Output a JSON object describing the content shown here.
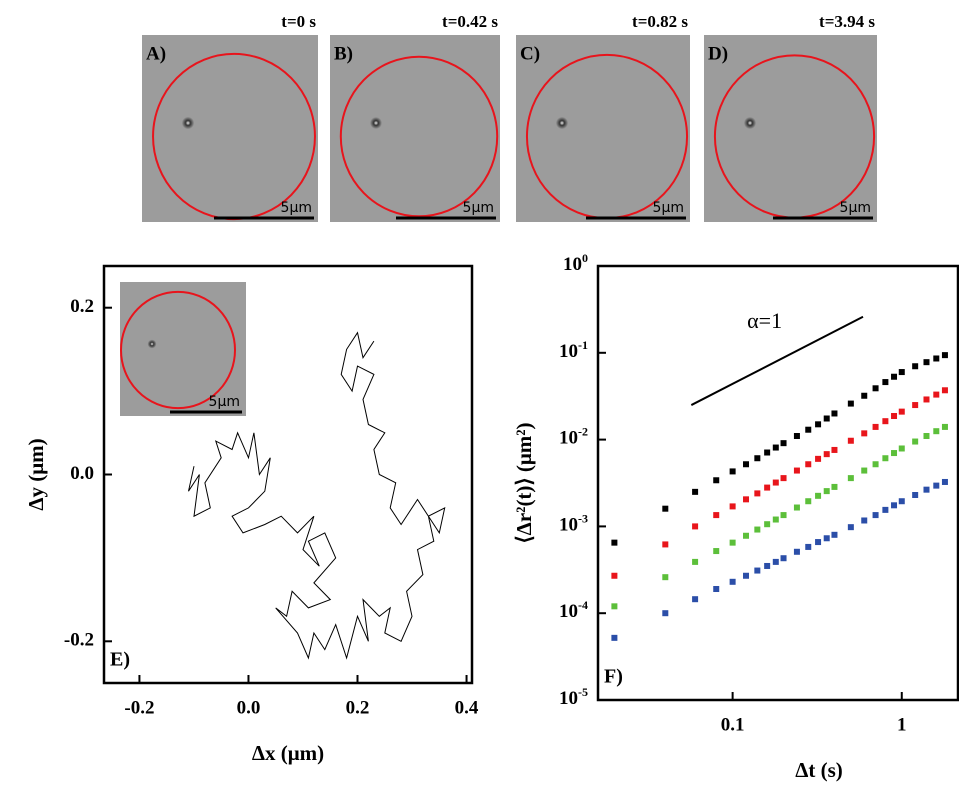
{
  "panels": [
    {
      "label": "A)",
      "time": "t=0 s",
      "scale": "5μm"
    },
    {
      "label": "B)",
      "time": "t=0.42 s",
      "scale": "5μm"
    },
    {
      "label": "C)",
      "time": "t=0.82 s",
      "scale": "5μm"
    },
    {
      "label": "D)",
      "time": "t=3.94 s",
      "scale": "5μm"
    }
  ],
  "inset": {
    "scale": "5μm"
  },
  "chart_data": [
    {
      "type": "line",
      "panel_label": "E)",
      "x_label": "Δx (μm)",
      "y_label": "Δy (μm)",
      "xlim": [
        -0.265,
        0.41
      ],
      "ylim": [
        -0.25,
        0.25
      ],
      "xticks": [
        -0.2,
        {
          "value": 0,
          "label": "0.0"
        },
        0.2,
        0.4
      ],
      "yticks": [
        -0.2,
        {
          "value": 0,
          "label": "0.0"
        },
        0.2
      ],
      "x": [
        -0.1,
        -0.11,
        -0.09,
        -0.1,
        -0.07,
        -0.08,
        -0.05,
        -0.06,
        -0.03,
        -0.02,
        0.0,
        0.01,
        0.02,
        0.04,
        0.03,
        0.0,
        -0.03,
        -0.01,
        0.03,
        0.06,
        0.09,
        0.12,
        0.1,
        0.13,
        0.11,
        0.14,
        0.16,
        0.12,
        0.15,
        0.11,
        0.08,
        0.07,
        0.05,
        0.09,
        0.11,
        0.12,
        0.14,
        0.16,
        0.18,
        0.2,
        0.22,
        0.21,
        0.24,
        0.26,
        0.25,
        0.28,
        0.3,
        0.29,
        0.32,
        0.31,
        0.34,
        0.33,
        0.36,
        0.35,
        0.31,
        0.28,
        0.26,
        0.27,
        0.24,
        0.23,
        0.25,
        0.22,
        0.21,
        0.23,
        0.2,
        0.19,
        0.17,
        0.18,
        0.2,
        0.21,
        0.23
      ],
      "series": [
        {
          "color": "#000000",
          "values": [
            0.01,
            -0.02,
            0.0,
            -0.05,
            -0.04,
            -0.01,
            0.02,
            0.04,
            0.03,
            0.05,
            0.02,
            0.05,
            0.0,
            0.02,
            -0.02,
            -0.04,
            -0.05,
            -0.07,
            -0.06,
            -0.05,
            -0.07,
            -0.05,
            -0.09,
            -0.11,
            -0.08,
            -0.07,
            -0.1,
            -0.13,
            -0.15,
            -0.16,
            -0.14,
            -0.17,
            -0.16,
            -0.19,
            -0.22,
            -0.19,
            -0.21,
            -0.18,
            -0.22,
            -0.17,
            -0.2,
            -0.15,
            -0.17,
            -0.16,
            -0.19,
            -0.2,
            -0.17,
            -0.14,
            -0.12,
            -0.09,
            -0.08,
            -0.05,
            -0.04,
            -0.07,
            -0.03,
            -0.06,
            -0.04,
            -0.01,
            0.0,
            0.03,
            0.05,
            0.06,
            0.09,
            0.12,
            0.13,
            0.1,
            0.12,
            0.15,
            0.17,
            0.14,
            0.16
          ]
        }
      ]
    },
    {
      "type": "scatter",
      "panel_label": "F)",
      "x_label": "Δt (s)",
      "y_label": "⟨Δr²(t)⟩ (μm²)",
      "xscale": "log",
      "yscale": "log",
      "xlim": [
        0.016,
        2.15
      ],
      "ylim": [
        1e-05,
        1
      ],
      "xticks": [
        0.1,
        1
      ],
      "yticks": [
        {
          "value": 1e-05,
          "label": "10^-5"
        },
        {
          "value": 0.0001,
          "label": "10^-4"
        },
        {
          "value": 0.001,
          "label": "10^-3"
        },
        {
          "value": 0.01,
          "label": "10^-2"
        },
        {
          "value": 0.1,
          "label": "10^-1"
        },
        {
          "value": 1,
          "label": "10^0"
        }
      ],
      "x": [
        0.02,
        0.04,
        0.06,
        0.08,
        0.1,
        0.12,
        0.14,
        0.16,
        0.18,
        0.2,
        0.24,
        0.28,
        0.32,
        0.36,
        0.4,
        0.5,
        0.6,
        0.7,
        0.8,
        0.9,
        1.0,
        1.2,
        1.4,
        1.6,
        1.8
      ],
      "series": [
        {
          "color": "#000000",
          "values": [
            0.00065,
            0.0016,
            0.0025,
            0.0034,
            0.0043,
            0.0052,
            0.0061,
            0.0071,
            0.0081,
            0.0091,
            0.011,
            0.013,
            0.015,
            0.0175,
            0.02,
            0.026,
            0.032,
            0.039,
            0.046,
            0.053,
            0.06,
            0.07,
            0.078,
            0.086,
            0.094
          ]
        },
        {
          "color": "#e8151b",
          "values": [
            0.00027,
            0.00062,
            0.001,
            0.00135,
            0.0017,
            0.00205,
            0.0024,
            0.0028,
            0.0032,
            0.0036,
            0.0044,
            0.0052,
            0.006,
            0.0068,
            0.0076,
            0.0097,
            0.0118,
            0.014,
            0.0163,
            0.0187,
            0.021,
            0.025,
            0.029,
            0.033,
            0.037
          ]
        },
        {
          "color": "#5cbf3a",
          "values": [
            0.00012,
            0.00026,
            0.00039,
            0.00052,
            0.00065,
            0.00078,
            0.00092,
            0.00106,
            0.0012,
            0.00135,
            0.00165,
            0.00195,
            0.00225,
            0.00255,
            0.00285,
            0.0036,
            0.0044,
            0.0052,
            0.0061,
            0.007,
            0.0079,
            0.0095,
            0.011,
            0.0125,
            0.014
          ]
        },
        {
          "color": "#2b4ea8",
          "values": [
            5.2e-05,
            0.0001,
            0.000145,
            0.00019,
            0.00023,
            0.00027,
            0.00031,
            0.00035,
            0.00039,
            0.00043,
            0.00051,
            0.00058,
            0.00066,
            0.00073,
            0.0008,
            0.00098,
            0.00117,
            0.00135,
            0.00155,
            0.00175,
            0.00195,
            0.0023,
            0.00265,
            0.00295,
            0.00325
          ]
        }
      ],
      "annotations": [
        {
          "text": "α=1",
          "x": [
            0.057,
            0.59
          ],
          "y": [
            0.025,
            0.26
          ]
        }
      ]
    }
  ]
}
